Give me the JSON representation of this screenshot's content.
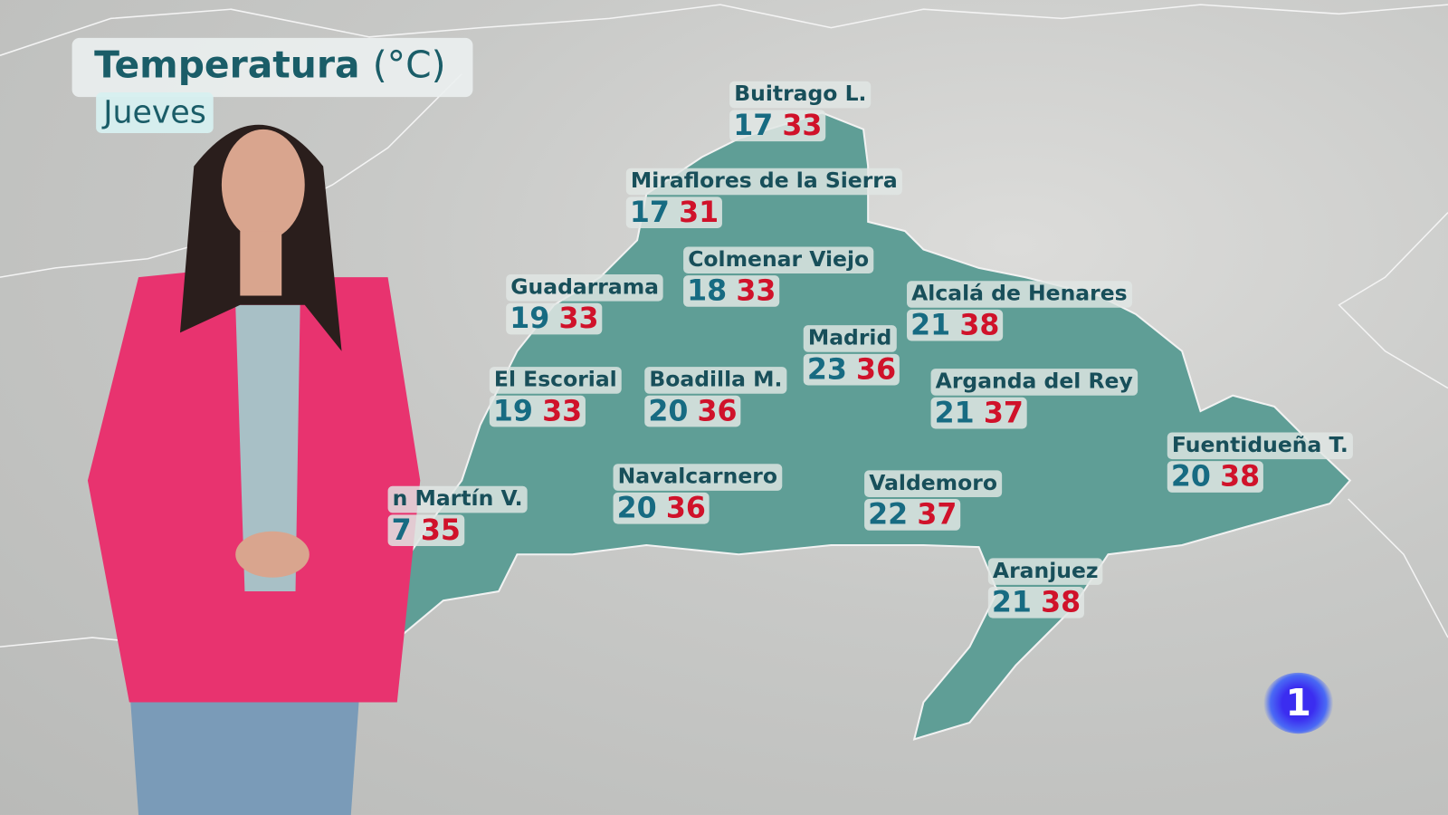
{
  "header": {
    "title": "Temperatura",
    "unit": "(°C)",
    "day": "Jueves"
  },
  "colors": {
    "region": "#5f9e96",
    "min_temp": "#176b82",
    "max_temp": "#d0122a",
    "label_text": "#184f5a"
  },
  "cities": [
    {
      "name": "Buitrago L.",
      "min": "17",
      "max": "33"
    },
    {
      "name": "Miraflores de la Sierra",
      "min": "17",
      "max": "31"
    },
    {
      "name": "Colmenar Viejo",
      "min": "18",
      "max": "33"
    },
    {
      "name": "Guadarrama",
      "min": "19",
      "max": "33"
    },
    {
      "name": "Alcalá de Henares",
      "min": "21",
      "max": "38"
    },
    {
      "name": "Madrid",
      "min": "23",
      "max": "36"
    },
    {
      "name": "El Escorial",
      "min": "19",
      "max": "33"
    },
    {
      "name": "Boadilla M.",
      "min": "20",
      "max": "36"
    },
    {
      "name": "Arganda del Rey",
      "min": "21",
      "max": "37"
    },
    {
      "name": "Fuentidueña T.",
      "min": "20",
      "max": "38"
    },
    {
      "name": "Navalcarnero",
      "min": "20",
      "max": "36"
    },
    {
      "name": "Valdemoro",
      "min": "22",
      "max": "37"
    },
    {
      "name": "n Martín  V.",
      "min": "7",
      "max": "35"
    },
    {
      "name": "Aranjuez",
      "min": "21",
      "max": "38"
    }
  ],
  "logo": {
    "text": "1"
  }
}
